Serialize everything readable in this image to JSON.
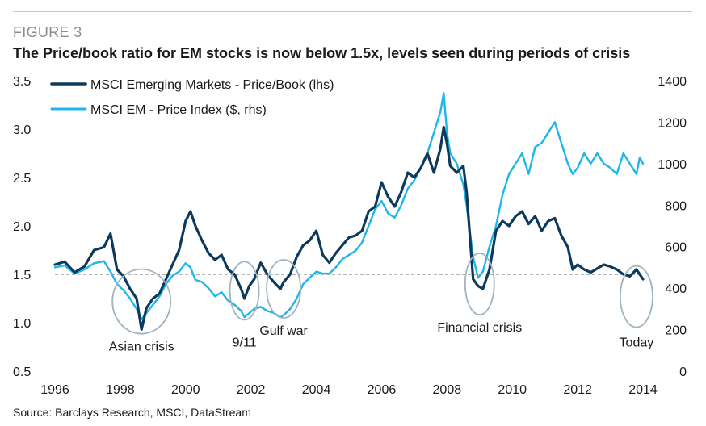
{
  "figure": {
    "label": "FIGURE 3",
    "title": "The Price/book ratio for EM stocks is now below 1.5x, levels seen during periods of crisis",
    "source": "Source: Barclays Research, MSCI, DataStream"
  },
  "chart_data": {
    "type": "line",
    "title": "The Price/book ratio for EM stocks is now below 1.5x, levels seen during periods of crisis",
    "xlim": [
      1996,
      2014
    ],
    "x_ticks": [
      "1996",
      "1998",
      "2000",
      "2002",
      "2004",
      "2006",
      "2008",
      "2010",
      "2012",
      "2014"
    ],
    "y_left": {
      "lim": [
        0.5,
        3.5
      ],
      "ticks": [
        "0.5",
        "1.0",
        "1.5",
        "2.0",
        "2.5",
        "3.0",
        "3.5"
      ]
    },
    "y_right": {
      "lim": [
        0,
        1400
      ],
      "ticks": [
        "0",
        "200",
        "400",
        "600",
        "800",
        "1000",
        "1200",
        "1400"
      ]
    },
    "reference_line": {
      "axis": "left",
      "value": 1.5,
      "style": "dashed",
      "color": "#8a8a8a"
    },
    "legend_position": "top-left",
    "series": [
      {
        "name": "MSCI Emerging Markets - Price/Book (lhs)",
        "axis": "left",
        "color": "#0d3a5c",
        "x": [
          1996.0,
          1996.3,
          1996.6,
          1996.9,
          1997.2,
          1997.5,
          1997.7,
          1997.9,
          1998.1,
          1998.3,
          1998.5,
          1998.65,
          1998.8,
          1999.0,
          1999.2,
          1999.4,
          1999.6,
          1999.8,
          2000.0,
          2000.15,
          2000.3,
          2000.5,
          2000.7,
          2000.9,
          2001.1,
          2001.3,
          2001.5,
          2001.7,
          2001.8,
          2001.95,
          2002.1,
          2002.3,
          2002.5,
          2002.7,
          2002.9,
          2003.0,
          2003.2,
          2003.4,
          2003.6,
          2003.8,
          2004.0,
          2004.2,
          2004.4,
          2004.6,
          2004.8,
          2005.0,
          2005.2,
          2005.4,
          2005.6,
          2005.8,
          2006.0,
          2006.2,
          2006.4,
          2006.6,
          2006.8,
          2007.0,
          2007.2,
          2007.4,
          2007.6,
          2007.8,
          2007.9,
          2008.0,
          2008.1,
          2008.3,
          2008.5,
          2008.6,
          2008.8,
          2008.95,
          2009.1,
          2009.3,
          2009.5,
          2009.7,
          2009.9,
          2010.1,
          2010.3,
          2010.5,
          2010.7,
          2010.9,
          2011.1,
          2011.3,
          2011.5,
          2011.7,
          2011.85,
          2012.0,
          2012.2,
          2012.4,
          2012.6,
          2012.8,
          2013.0,
          2013.2,
          2013.4,
          2013.6,
          2013.8,
          2013.9,
          2014.0
        ],
        "values": [
          1.6,
          1.63,
          1.52,
          1.58,
          1.75,
          1.78,
          1.92,
          1.55,
          1.48,
          1.35,
          1.25,
          0.93,
          1.15,
          1.25,
          1.3,
          1.45,
          1.6,
          1.75,
          2.05,
          2.15,
          2.0,
          1.85,
          1.72,
          1.65,
          1.7,
          1.55,
          1.5,
          1.35,
          1.25,
          1.38,
          1.45,
          1.62,
          1.5,
          1.42,
          1.35,
          1.42,
          1.5,
          1.68,
          1.8,
          1.85,
          1.95,
          1.7,
          1.62,
          1.72,
          1.8,
          1.88,
          1.9,
          1.95,
          2.15,
          2.2,
          2.45,
          2.3,
          2.2,
          2.35,
          2.55,
          2.5,
          2.6,
          2.75,
          2.55,
          2.8,
          3.02,
          2.85,
          2.62,
          2.55,
          2.62,
          2.35,
          1.45,
          1.38,
          1.35,
          1.55,
          1.95,
          2.05,
          2.0,
          2.1,
          2.15,
          2.02,
          2.1,
          1.95,
          2.05,
          2.08,
          1.9,
          1.78,
          1.55,
          1.6,
          1.55,
          1.52,
          1.56,
          1.6,
          1.58,
          1.55,
          1.5,
          1.48,
          1.55,
          1.5,
          1.45
        ]
      },
      {
        "name": "MSCI EM - Price Index ($, rhs)",
        "axis": "right",
        "color": "#1fb6e8",
        "x": [
          1996.0,
          1996.3,
          1996.6,
          1996.9,
          1997.2,
          1997.5,
          1997.7,
          1997.9,
          1998.1,
          1998.3,
          1998.5,
          1998.65,
          1998.8,
          1999.0,
          1999.2,
          1999.4,
          1999.6,
          1999.8,
          2000.0,
          2000.15,
          2000.3,
          2000.5,
          2000.7,
          2000.9,
          2001.1,
          2001.3,
          2001.5,
          2001.7,
          2001.8,
          2001.95,
          2002.1,
          2002.3,
          2002.5,
          2002.7,
          2002.9,
          2003.0,
          2003.2,
          2003.4,
          2003.6,
          2003.8,
          2004.0,
          2004.2,
          2004.4,
          2004.6,
          2004.8,
          2005.0,
          2005.2,
          2005.4,
          2005.6,
          2005.8,
          2006.0,
          2006.2,
          2006.4,
          2006.6,
          2006.8,
          2007.0,
          2007.2,
          2007.4,
          2007.6,
          2007.8,
          2007.9,
          2008.0,
          2008.1,
          2008.3,
          2008.5,
          2008.6,
          2008.8,
          2008.95,
          2009.1,
          2009.3,
          2009.5,
          2009.7,
          2009.9,
          2010.1,
          2010.3,
          2010.5,
          2010.7,
          2010.9,
          2011.1,
          2011.3,
          2011.5,
          2011.7,
          2011.85,
          2012.0,
          2012.2,
          2012.4,
          2012.6,
          2012.8,
          2013.0,
          2013.2,
          2013.4,
          2013.6,
          2013.8,
          2013.9,
          2014.0
        ],
        "values": [
          500,
          510,
          470,
          490,
          520,
          530,
          480,
          420,
          390,
          350,
          300,
          250,
          280,
          320,
          360,
          420,
          460,
          480,
          520,
          500,
          440,
          430,
          400,
          360,
          380,
          340,
          320,
          290,
          260,
          280,
          300,
          310,
          290,
          280,
          260,
          270,
          300,
          350,
          420,
          450,
          480,
          470,
          470,
          500,
          540,
          560,
          580,
          620,
          700,
          780,
          820,
          760,
          740,
          800,
          880,
          920,
          980,
          1050,
          1150,
          1250,
          1340,
          1150,
          1050,
          1000,
          900,
          800,
          550,
          450,
          480,
          600,
          700,
          850,
          950,
          1000,
          1050,
          950,
          1080,
          1100,
          1150,
          1200,
          1100,
          1000,
          950,
          980,
          1050,
          1000,
          1050,
          1000,
          980,
          950,
          1050,
          1000,
          950,
          1030,
          1000
        ]
      }
    ],
    "annotations": [
      {
        "label": "Asian crisis",
        "x": 1998.65,
        "y_left": 1.22
      },
      {
        "label": "9/11",
        "x": 2001.8,
        "y_left": 1.33
      },
      {
        "label": "Gulf war",
        "x": 2003.0,
        "y_left": 1.35
      },
      {
        "label": "Financial crisis",
        "x": 2009.0,
        "y_left": 1.4
      },
      {
        "label": "Today",
        "x": 2013.8,
        "y_left": 1.27
      }
    ]
  }
}
